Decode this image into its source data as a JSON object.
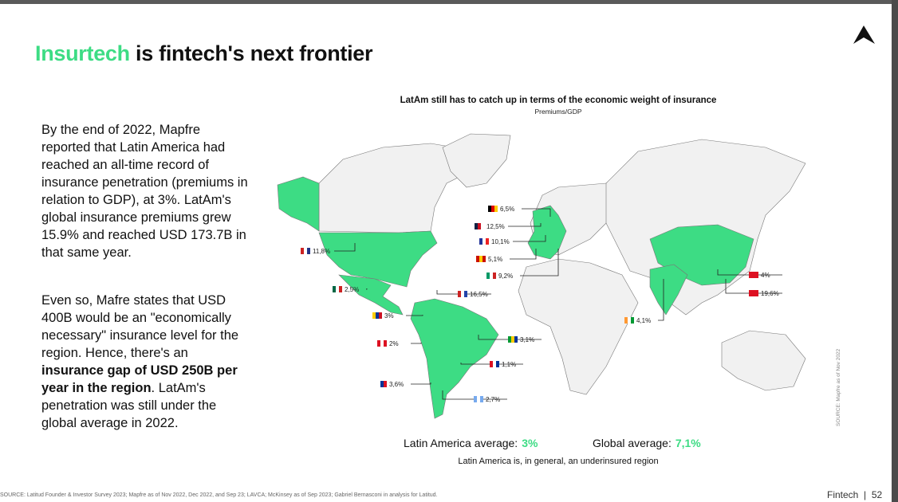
{
  "header": {
    "title_highlight": "Insurtech",
    "title_rest": "is fintech's next frontier"
  },
  "body": {
    "paragraph_1": "By the end of 2022, Mapfre reported that Latin America had reached an all-time record of insurance penetration (premiums in relation to GDP), at 3%. LatAm's global insurance premiums grew 15.9% and reached USD 173.7B in that same year.",
    "paragraph_2_start": "Even so, Mafre states that USD 400B would be an \"economically necessary\" insurance level for the region. Hence, there's an ",
    "paragraph_2_bold": "insurance gap of USD 250B per year in the region",
    "paragraph_2_end": ". LatAm's penetration was still under the global average in 2022."
  },
  "map": {
    "title": "LatAm still has to catch up in terms of the economic weight of insurance",
    "subtitle": "Premiums/GDP",
    "labels": [
      "6,5%",
      "12,5%",
      "10,1%",
      "5,1%",
      "9,2%",
      "11,8%",
      "2,5%",
      "16,5%",
      "3%",
      "2%",
      "3,6%",
      "3,1%",
      "1,1%",
      "2,7%",
      "4,1%",
      "4%",
      "19,6%"
    ],
    "averages": [
      {
        "label": "Latin America average:",
        "value": "3%"
      },
      {
        "label": "Global average:",
        "value": "7,1%"
      }
    ],
    "caption": "Latin America is, in general, an underinsured region",
    "source_note": "SOURCE: Mapfre as of Nov 2022"
  },
  "footer": {
    "source": "SOURCE: Latitud Founder & Investor Survey 2023; Mapfre as of Nov 2022, Dec 2022, and Sep 23; LAVCA; McKinsey as of Sep 2023; Gabriel Bernasconi in analysis for Latitud.",
    "section": "Fintech",
    "page": "52"
  }
}
